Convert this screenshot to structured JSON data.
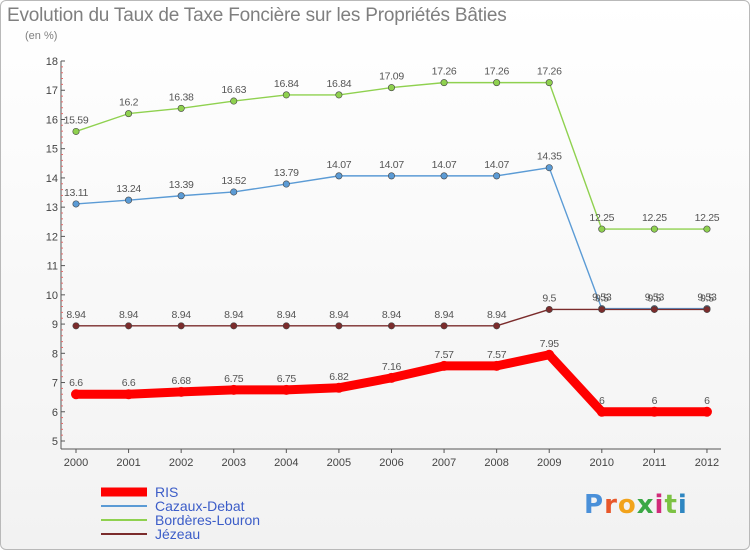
{
  "title": "Evolution du Taux de Taxe Foncière sur les Propriétés Bâties",
  "subtitle": "(en %)",
  "brand": "Proxiti",
  "brand_colors": [
    "#4a90d9",
    "#e8572a",
    "#f2a31b",
    "#3aa845",
    "#d12b7a",
    "#7cc243",
    "#2e86c1"
  ],
  "chart_data": {
    "type": "line",
    "title": "Evolution du Taux de Taxe Foncière sur les Propriétés Bâties",
    "ylabel": "(en %)",
    "xlabel": "",
    "x": [
      "2000",
      "2001",
      "2002",
      "2003",
      "2004",
      "2005",
      "2006",
      "2007",
      "2008",
      "2009",
      "2010",
      "2011",
      "2012"
    ],
    "ylim": [
      5,
      18
    ],
    "yticks": [
      "5",
      "6",
      "7",
      "8",
      "9",
      "10",
      "11",
      "12",
      "13",
      "14",
      "15",
      "16",
      "17",
      "18"
    ],
    "grid": false,
    "legend_position": "bottom-left",
    "series": [
      {
        "name": "RIS",
        "color": "#ff0000",
        "emphasis": true,
        "values": [
          6.6,
          6.6,
          6.68,
          6.75,
          6.75,
          6.82,
          7.16,
          7.57,
          7.57,
          7.95,
          6,
          6,
          6
        ],
        "labels": [
          "6.6",
          "6.6",
          "6.68",
          "6.75",
          "6.75",
          "6.82",
          "7.16",
          "7.57",
          "7.57",
          "7.95",
          "6",
          "6",
          "6"
        ]
      },
      {
        "name": "Cazaux-Debat",
        "color": "#5b9bd5",
        "emphasis": false,
        "values": [
          13.11,
          13.24,
          13.39,
          13.52,
          13.79,
          14.07,
          14.07,
          14.07,
          14.07,
          14.35,
          9.53,
          9.53,
          9.53
        ],
        "labels": [
          "13.11",
          "13.24",
          "13.39",
          "13.52",
          "13.79",
          "14.07",
          "14.07",
          "14.07",
          "14.07",
          "14.35",
          "9.53",
          "9.53",
          "9.53"
        ]
      },
      {
        "name": "Bordères-Louron",
        "color": "#8fd14f",
        "emphasis": false,
        "values": [
          15.59,
          16.2,
          16.38,
          16.63,
          16.84,
          16.84,
          17.09,
          17.26,
          17.26,
          17.26,
          12.25,
          12.25,
          12.25
        ],
        "labels": [
          "15.59",
          "16.2",
          "16.38",
          "16.63",
          "16.84",
          "16.84",
          "17.09",
          "17.26",
          "17.26",
          "17.26",
          "12.25",
          "12.25",
          "12.25"
        ]
      },
      {
        "name": "Jézeau",
        "color": "#7b2c2c",
        "emphasis": false,
        "values": [
          8.94,
          8.94,
          8.94,
          8.94,
          8.94,
          8.94,
          8.94,
          8.94,
          8.94,
          9.5,
          9.5,
          9.5,
          9.5
        ],
        "labels": [
          "8.94",
          "8.94",
          "8.94",
          "8.94",
          "8.94",
          "8.94",
          "8.94",
          "8.94",
          "8.94",
          "9.5",
          "9.5",
          "9.5",
          "9.5"
        ]
      }
    ]
  }
}
